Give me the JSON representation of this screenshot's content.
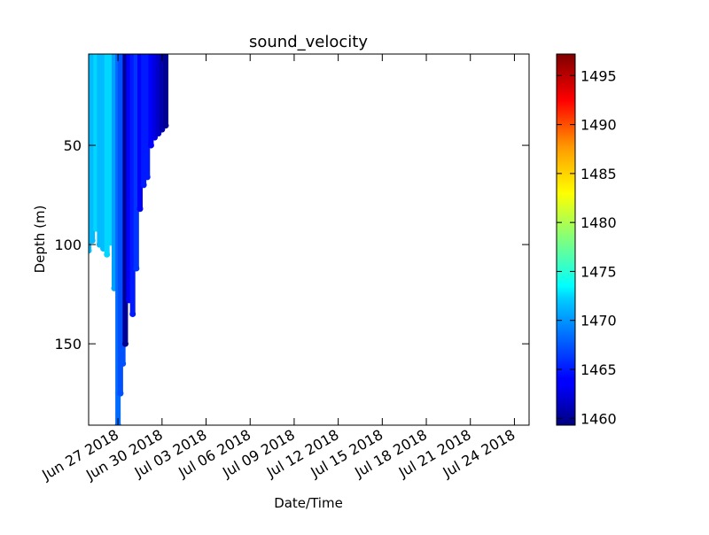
{
  "chart_data": {
    "type": "scatter",
    "title": "sound_velocity",
    "xlabel": "Date/Time",
    "ylabel": "Depth (m)",
    "x_axis": {
      "type": "date",
      "range": [
        "2018-06-25",
        "2018-07-25"
      ],
      "ticks": [
        "Jun 27 2018",
        "Jun 30 2018",
        "Jul 03 2018",
        "Jul 06 2018",
        "Jul 09 2018",
        "Jul 12 2018",
        "Jul 15 2018",
        "Jul 18 2018",
        "Jul 21 2018",
        "Jul 24 2018"
      ]
    },
    "y_axis": {
      "inverted": true,
      "range": [
        191,
        4
      ],
      "ticks": [
        "50",
        "100",
        "150"
      ]
    },
    "colorbar": {
      "range": [
        1459.3,
        1497.2
      ],
      "colormap": "jet",
      "ticks": [
        "1460",
        "1465",
        "1470",
        "1475",
        "1480",
        "1485",
        "1490",
        "1495"
      ]
    },
    "grid": false,
    "profiles": [
      {
        "date": "2018-06-25",
        "max_depth": 103,
        "value": 1471
      },
      {
        "date": "2018-06-25 06:00",
        "max_depth": 98,
        "value": 1471
      },
      {
        "date": "2018-06-25 12:00",
        "max_depth": 92,
        "value": 1472
      },
      {
        "date": "2018-06-25 18:00",
        "max_depth": 100,
        "value": 1471
      },
      {
        "date": "2018-06-26 00:00",
        "max_depth": 102,
        "value": 1471
      },
      {
        "date": "2018-06-26 06:00",
        "max_depth": 105,
        "value": 1472
      },
      {
        "date": "2018-06-26 12:00",
        "max_depth": 99,
        "value": 1472
      },
      {
        "date": "2018-06-26 18:00",
        "max_depth": 122,
        "value": 1470
      },
      {
        "date": "2018-06-27 00:00",
        "max_depth": 191,
        "value": 1468
      },
      {
        "date": "2018-06-27 04:00",
        "max_depth": 175,
        "value": 1467
      },
      {
        "date": "2018-06-27 08:00",
        "max_depth": 160,
        "value": 1467
      },
      {
        "date": "2018-06-27 12:00",
        "max_depth": 150,
        "value": 1460
      },
      {
        "date": "2018-06-27 18:00",
        "max_depth": 128,
        "value": 1464
      },
      {
        "date": "2018-06-28 00:00",
        "max_depth": 135,
        "value": 1465
      },
      {
        "date": "2018-06-28 06:00",
        "max_depth": 112,
        "value": 1466
      },
      {
        "date": "2018-06-28 12:00",
        "max_depth": 82,
        "value": 1464
      },
      {
        "date": "2018-06-28 18:00",
        "max_depth": 70,
        "value": 1465
      },
      {
        "date": "2018-06-29 00:00",
        "max_depth": 66,
        "value": 1465
      },
      {
        "date": "2018-06-29 06:00",
        "max_depth": 50,
        "value": 1464
      },
      {
        "date": "2018-06-29 12:00",
        "max_depth": 46,
        "value": 1463
      },
      {
        "date": "2018-06-29 18:00",
        "max_depth": 44,
        "value": 1462
      },
      {
        "date": "2018-06-30 00:00",
        "max_depth": 42,
        "value": 1461
      },
      {
        "date": "2018-06-30 06:00",
        "max_depth": 40,
        "value": 1460
      }
    ]
  }
}
